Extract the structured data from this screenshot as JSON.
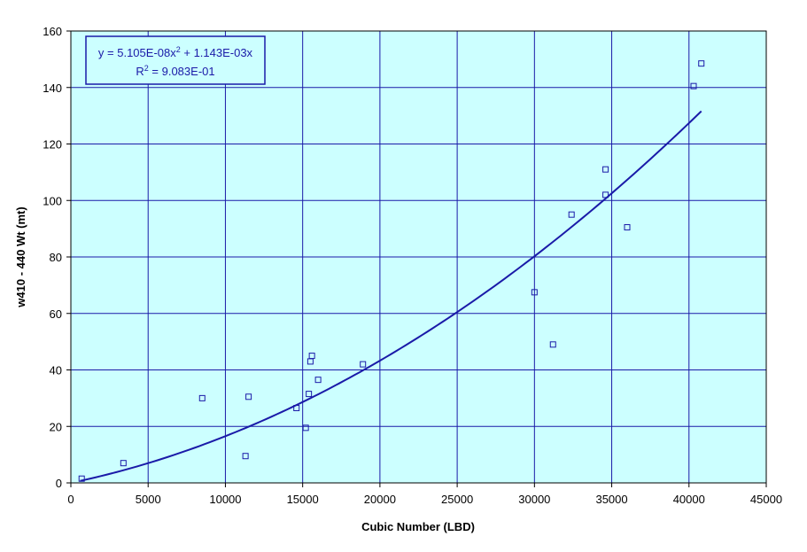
{
  "chart_data": {
    "type": "scatter",
    "title": "",
    "xlabel": "Cubic Number (LBD)",
    "ylabel": "w410 - 440 Wt (mt)",
    "xlim": [
      0,
      45000
    ],
    "ylim": [
      0,
      160
    ],
    "xticks": [
      0,
      5000,
      10000,
      15000,
      20000,
      25000,
      30000,
      35000,
      40000,
      45000
    ],
    "yticks": [
      0,
      20,
      40,
      60,
      80,
      100,
      120,
      140,
      160
    ],
    "grid": true,
    "colors": {
      "plot_bg": "#ccffff",
      "grid": "#1a1aa8",
      "series": "#1a1aa8",
      "frame": "#000000"
    },
    "series": [
      {
        "type": "scatter",
        "marker": "square-open",
        "points": [
          [
            700,
            1.5
          ],
          [
            3400,
            7
          ],
          [
            8500,
            30
          ],
          [
            11300,
            9.5
          ],
          [
            11500,
            30.5
          ],
          [
            14600,
            26.5
          ],
          [
            15200,
            19.5
          ],
          [
            15400,
            31.5
          ],
          [
            15500,
            43
          ],
          [
            15600,
            45
          ],
          [
            16000,
            36.5
          ],
          [
            18900,
            42
          ],
          [
            30000,
            67.5
          ],
          [
            31200,
            49
          ],
          [
            32400,
            95
          ],
          [
            34600,
            111
          ],
          [
            34600,
            102
          ],
          [
            36000,
            90.5
          ],
          [
            40300,
            140.5
          ],
          [
            40800,
            148.5
          ]
        ]
      },
      {
        "type": "trendline",
        "fit": "polynomial",
        "coefficients": {
          "a2": 5.105e-08,
          "a1": 0.001143,
          "a0": 0
        },
        "x_range": [
          600,
          40800
        ]
      }
    ],
    "annotations": {
      "equation_line1": {
        "prefix": "y = 5.105E-08x",
        "sup": "2",
        "suffix": " + 1.143E-03x"
      },
      "equation_line2": {
        "prefix": "R",
        "sup": "2",
        "suffix": " = 9.083E-01"
      }
    }
  }
}
